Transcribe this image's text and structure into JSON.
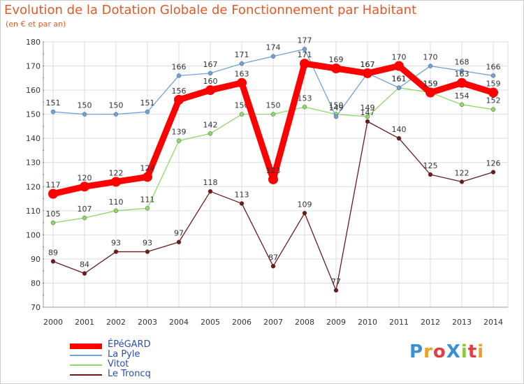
{
  "chart_data": {
    "type": "line",
    "title": "Evolution de la Dotation Globale de Fonctionnement par Habitant",
    "subtitle": "(en € et par an)",
    "categories": [
      "2000",
      "2001",
      "2002",
      "2003",
      "2004",
      "2005",
      "2006",
      "2007",
      "2008",
      "2009",
      "2010",
      "2011",
      "2012",
      "2013",
      "2014"
    ],
    "ylim": [
      70,
      180
    ],
    "yticks": [
      70,
      80,
      90,
      100,
      110,
      120,
      130,
      140,
      150,
      160,
      170,
      180
    ],
    "grid": true,
    "series": [
      {
        "name": "Le Troncq",
        "color": "#6b1a1a",
        "values": [
          89,
          84,
          93,
          93,
          97,
          118,
          113,
          87,
          109,
          77,
          147,
          140,
          125,
          122,
          126
        ]
      },
      {
        "name": "Vitot",
        "color": "#8ed86a",
        "values": [
          105,
          107,
          110,
          111,
          139,
          142,
          150,
          150,
          153,
          150,
          149,
          161,
          159,
          154,
          152
        ]
      },
      {
        "name": "La Pyle",
        "color": "#6fa3d8",
        "values": [
          151,
          150,
          150,
          151,
          166,
          167,
          171,
          174,
          177,
          149,
          167,
          161,
          170,
          168,
          166
        ]
      },
      {
        "name": "ÉPéGARD",
        "color": "#ff0000",
        "values": [
          117,
          120,
          122,
          124,
          156,
          160,
          163,
          123,
          171,
          169,
          167,
          170,
          159,
          163,
          159
        ]
      }
    ]
  },
  "legend": [
    {
      "name": "ÉPéGARD",
      "color": "#ff0000"
    },
    {
      "name": "La Pyle",
      "color": "#6fa3d8"
    },
    {
      "name": "Vitot",
      "color": "#8ed86a"
    },
    {
      "name": "Le Troncq",
      "color": "#6b1a1a"
    }
  ],
  "logo": {
    "text": "ProXiti"
  }
}
